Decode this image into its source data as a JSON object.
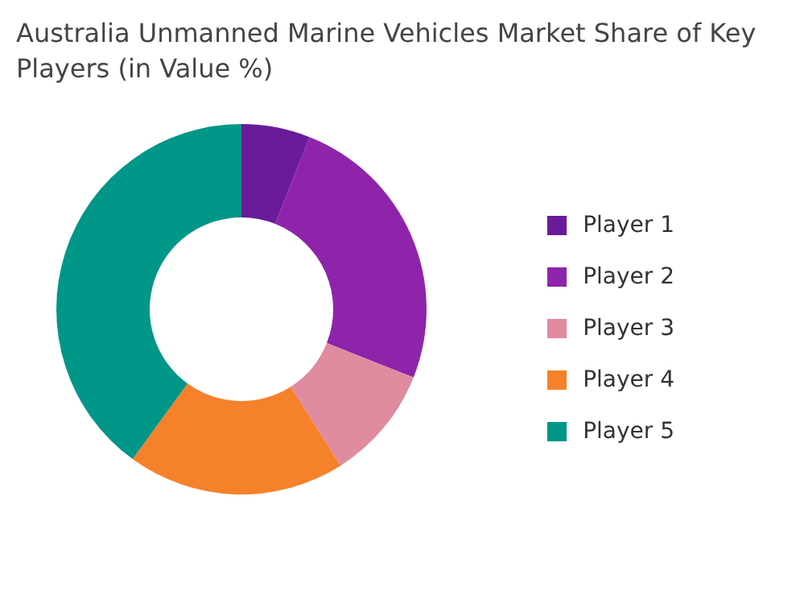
{
  "chart_data": {
    "type": "donut",
    "title": "Australia Unmanned Marine Vehicles Market Share of Key Players (in Value %)",
    "categories": [
      "Player 1",
      "Player 2",
      "Player 3",
      "Player 4",
      "Player 5"
    ],
    "values": [
      6,
      25,
      10,
      19,
      40
    ],
    "colors": [
      "#6a1b9a",
      "#8e24aa",
      "#e08ba0",
      "#f5812a",
      "#009688"
    ],
    "legend": "right"
  }
}
